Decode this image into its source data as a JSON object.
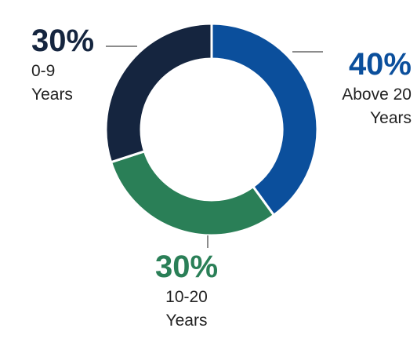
{
  "chart_data": {
    "type": "donut",
    "categories": [
      "Above 20 Years",
      "10-20 Years",
      "0-9 Years"
    ],
    "values": [
      40,
      30,
      30
    ],
    "value_labels": [
      "40%",
      "30%",
      "30%"
    ],
    "colors": [
      "#0b4f9c",
      "#2a7f57",
      "#15253f"
    ]
  }
}
